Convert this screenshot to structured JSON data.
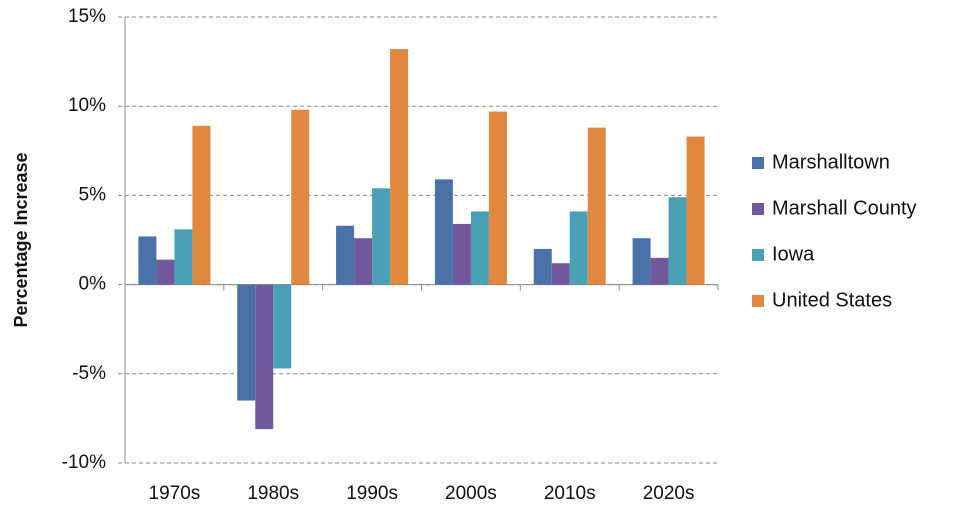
{
  "chart_data": {
    "type": "bar",
    "y_label": "Percentage Increase",
    "categories": [
      "1970s",
      "1980s",
      "1990s",
      "2000s",
      "2010s",
      "2020s"
    ],
    "series": [
      {
        "name": "Marshalltown",
        "color": "#4a72a8",
        "values": [
          2.7,
          -6.5,
          3.3,
          5.9,
          2.0,
          2.6
        ]
      },
      {
        "name": "Marshall County",
        "color": "#71589a",
        "values": [
          1.4,
          -8.1,
          2.6,
          3.4,
          1.2,
          1.5
        ]
      },
      {
        "name": "Iowa",
        "color": "#4aa0b6",
        "values": [
          3.1,
          -4.7,
          5.4,
          4.1,
          4.1,
          4.9
        ]
      },
      {
        "name": "United States",
        "color": "#e0883e",
        "values": [
          8.9,
          9.8,
          13.2,
          9.7,
          8.8,
          8.3
        ]
      }
    ],
    "ylim": [
      -10,
      15
    ],
    "yticks": [
      {
        "value": -10,
        "label": "-10%"
      },
      {
        "value": -5,
        "label": "-5%"
      },
      {
        "value": 0,
        "label": "0%"
      },
      {
        "value": 5,
        "label": "5%"
      },
      {
        "value": 10,
        "label": "10%"
      },
      {
        "value": 15,
        "label": "15%"
      }
    ],
    "grid": true,
    "legend": "right"
  }
}
